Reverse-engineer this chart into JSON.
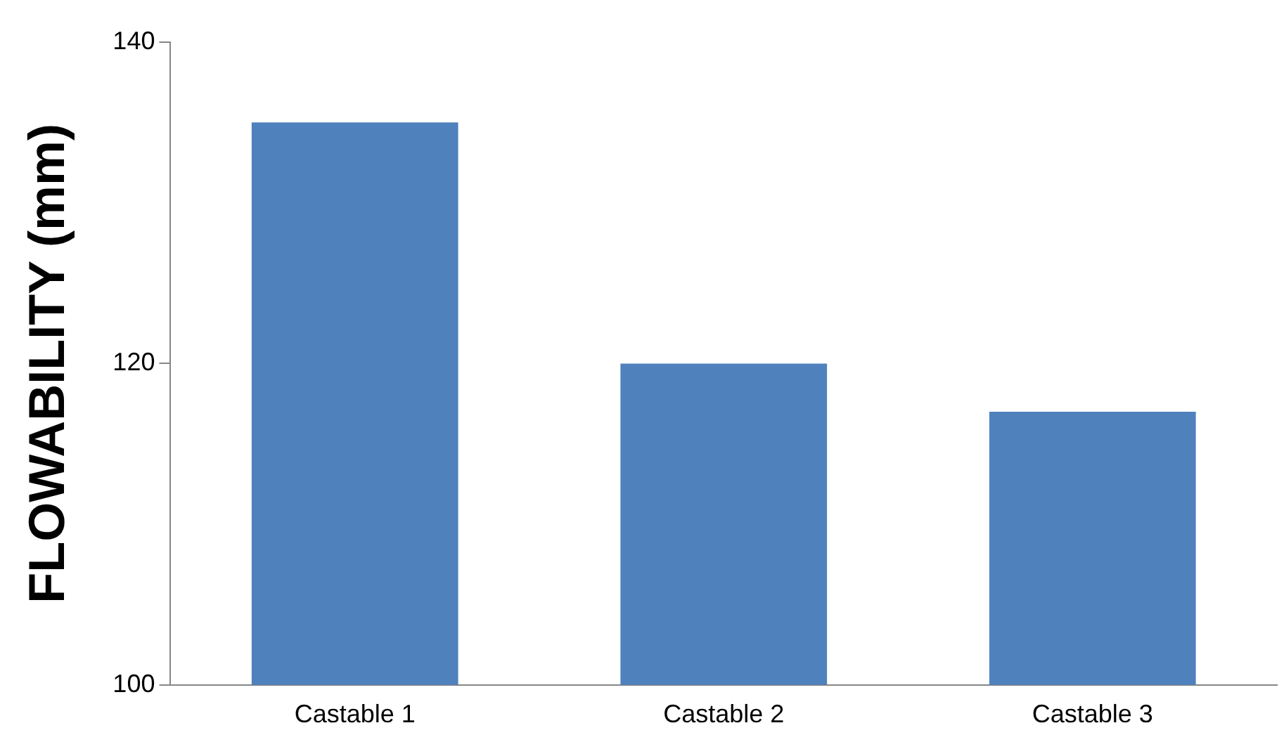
{
  "chart_data": {
    "type": "bar",
    "ylabel": "FLOWABILITY (mm)",
    "categories": [
      "Castable 1",
      "Castable 2",
      "Castable 3"
    ],
    "values": [
      135,
      120,
      117
    ],
    "color": "#4f81bd",
    "ylim": [
      100,
      140
    ],
    "yticks": [
      100,
      120,
      140
    ],
    "grid": false,
    "legend": false
  }
}
